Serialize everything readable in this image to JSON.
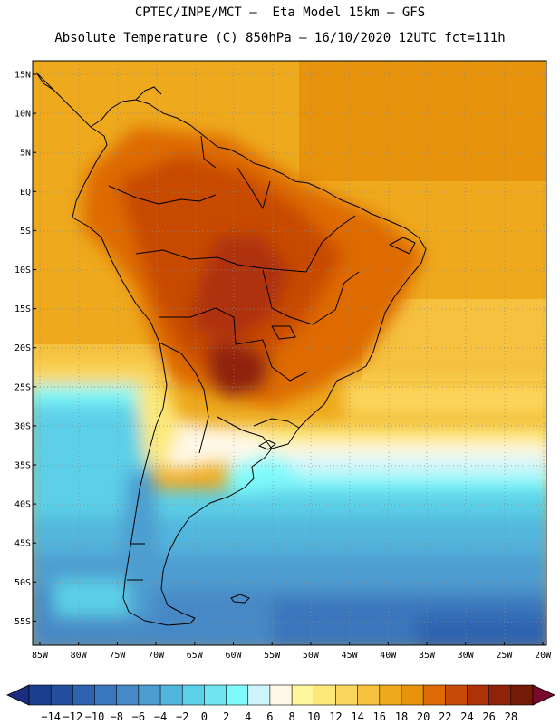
{
  "header": {
    "title_line1": "CPTEC/INPE/MCT —  Eta Model 15km — GFS",
    "title_line2": "Absolute Temperature (C) 850hPa — 16/10/2020 12UTC fct=111h"
  },
  "axes": {
    "lat_labels": [
      "15N",
      "10N",
      "5N",
      "EQ",
      "5S",
      "10S",
      "15S",
      "20S",
      "25S",
      "30S",
      "35S",
      "40S",
      "45S",
      "50S",
      "55S"
    ],
    "lon_labels": [
      "85W",
      "80W",
      "75W",
      "70W",
      "65W",
      "60W",
      "55W",
      "50W",
      "45W",
      "40W",
      "35W",
      "30W",
      "25W",
      "20W"
    ]
  },
  "colorbar": {
    "labels": [
      "-14",
      "-12",
      "-10",
      "-8",
      "-6",
      "-4",
      "-2",
      "0",
      "2",
      "4",
      "6",
      "8",
      "10",
      "12",
      "14",
      "16",
      "18",
      "20",
      "22",
      "24",
      "26",
      "28"
    ],
    "colors": [
      "#1a3f8c",
      "#234f9e",
      "#2e63b0",
      "#3a76bc",
      "#4689c6",
      "#4d9dd0",
      "#52b6dc",
      "#5bd0e8",
      "#6ee4f0",
      "#7ffafa",
      "#cdf5fb",
      "#fff8e8",
      "#fff59c",
      "#fde97a",
      "#fbd65c",
      "#f5c13e",
      "#eea91c",
      "#e8930c",
      "#de6a06",
      "#c84a06",
      "#ae3208",
      "#8f2308",
      "#741b08"
    ],
    "under_color": "#1c2c80",
    "over_color": "#7a0a2a"
  }
}
